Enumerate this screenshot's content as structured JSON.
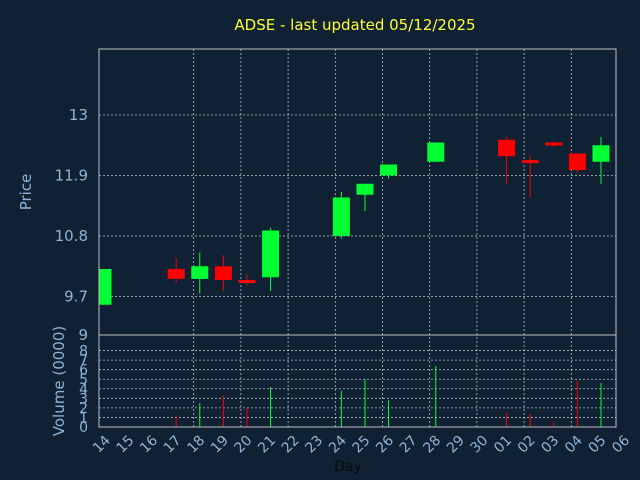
{
  "chart_data": {
    "type": "candlestick",
    "title": "ADSE - last updated 05/12/2025",
    "xlabel": "Day",
    "price_panel": {
      "ylabel": "Price",
      "ylim": [
        9,
        14.2
      ],
      "yticks": [
        9,
        9.7,
        10.8,
        11.9,
        13
      ],
      "ytick_labels": [
        "9",
        "9.7",
        "10.8",
        "11.9",
        "13"
      ],
      "grid": true
    },
    "volume_panel": {
      "ylabel": "Volume (0000)",
      "ylim": [
        0,
        9
      ],
      "yticks": [
        0,
        1,
        2,
        3,
        4,
        5,
        6,
        7,
        8
      ],
      "ytick_labels": [
        "0",
        "1",
        "2",
        "3",
        "4",
        "5",
        "6",
        "7",
        "8"
      ],
      "grid": true
    },
    "x_labels": [
      "14",
      "15",
      "16",
      "17",
      "18",
      "19",
      "20",
      "21",
      "22",
      "23",
      "24",
      "25",
      "26",
      "27",
      "28",
      "29",
      "30",
      "01",
      "02",
      "03",
      "04",
      "05",
      "06"
    ],
    "colors": {
      "up": "#00ff33",
      "down": "#ff0000",
      "grid": "#cfd8e3",
      "frame": "#c0c0c0",
      "background": "#0f2133"
    },
    "candles": [
      {
        "day": "14",
        "x": 0.0,
        "open": 9.55,
        "high": 10.2,
        "low": 9.55,
        "close": 10.2,
        "volume": 0
      },
      {
        "day": "17",
        "x": 3.1,
        "open": 10.2,
        "high": 10.4,
        "low": 9.95,
        "close": 10.02,
        "volume": 1.2
      },
      {
        "day": "18",
        "x": 4.1,
        "open": 10.02,
        "high": 10.5,
        "low": 9.75,
        "close": 10.25,
        "volume": 2.5
      },
      {
        "day": "19",
        "x": 5.1,
        "open": 10.25,
        "high": 10.45,
        "low": 9.8,
        "close": 10.0,
        "volume": 3.3
      },
      {
        "day": "20",
        "x": 6.1,
        "open": 10.0,
        "high": 10.1,
        "low": 9.9,
        "close": 9.98,
        "volume": 2.0
      },
      {
        "day": "21",
        "x": 7.1,
        "open": 10.05,
        "high": 10.95,
        "low": 9.8,
        "close": 10.9,
        "volume": 4.2
      },
      {
        "day": "24",
        "x": 10.1,
        "open": 10.8,
        "high": 11.6,
        "low": 10.75,
        "close": 11.5,
        "volume": 3.8
      },
      {
        "day": "25",
        "x": 11.1,
        "open": 11.55,
        "high": 11.75,
        "low": 11.25,
        "close": 11.75,
        "volume": 5.0
      },
      {
        "day": "26",
        "x": 12.1,
        "open": 11.9,
        "high": 12.1,
        "low": 11.85,
        "close": 12.1,
        "volume": 2.8
      },
      {
        "day": "28",
        "x": 14.1,
        "open": 12.15,
        "high": 12.5,
        "low": 12.15,
        "close": 12.5,
        "volume": 6.4
      },
      {
        "day": "01",
        "x": 17.1,
        "open": 12.55,
        "high": 12.6,
        "low": 11.75,
        "close": 12.25,
        "volume": 1.5
      },
      {
        "day": "02",
        "x": 18.1,
        "open": 12.18,
        "high": 12.25,
        "low": 11.5,
        "close": 12.13,
        "volume": 1.4
      },
      {
        "day": "03",
        "x": 19.1,
        "open": 12.5,
        "high": 12.52,
        "low": 12.42,
        "close": 12.47,
        "volume": 0.6
      },
      {
        "day": "04",
        "x": 20.1,
        "open": 12.3,
        "high": 12.3,
        "low": 11.95,
        "close": 12.0,
        "volume": 4.8
      },
      {
        "day": "05",
        "x": 21.1,
        "open": 12.15,
        "high": 12.6,
        "low": 11.75,
        "close": 12.45,
        "volume": 4.6
      }
    ]
  }
}
